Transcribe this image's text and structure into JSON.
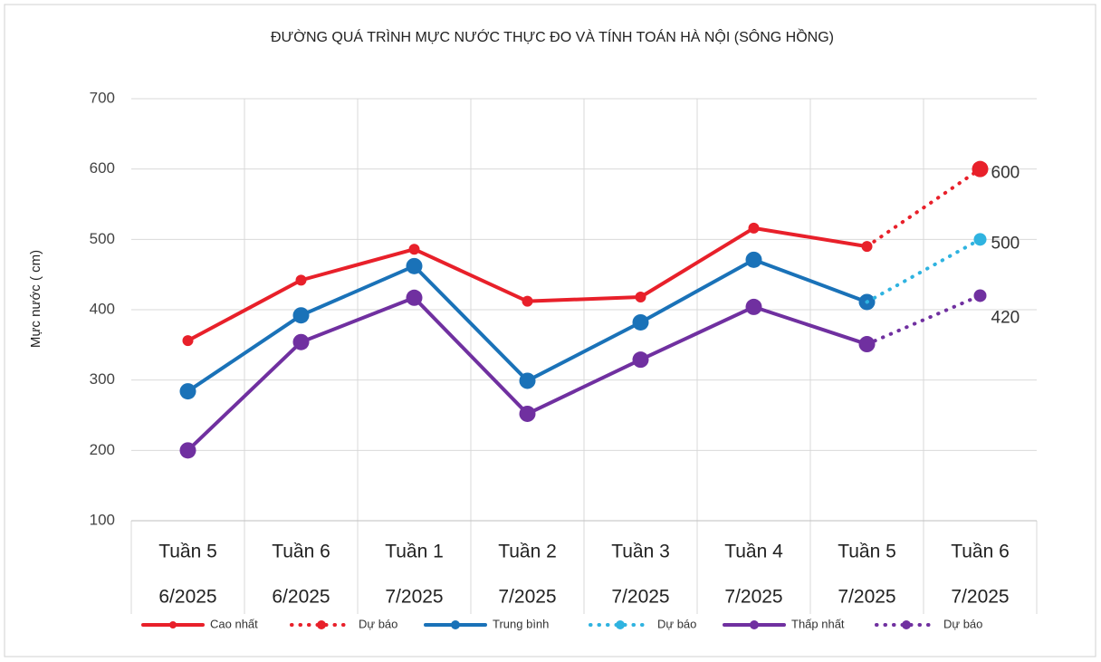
{
  "chart_data": {
    "type": "line",
    "title": "ĐƯỜNG QUÁ TRÌNH MỰC NƯỚC THỰC ĐO VÀ TÍNH TOÁN HÀ NỘI (SÔNG HỒNG)",
    "y_label": "Mực nước ( cm)",
    "categories": [
      [
        "Tuần 5",
        "6/2025"
      ],
      [
        "Tuần 6",
        "6/2025"
      ],
      [
        "Tuần 1",
        "7/2025"
      ],
      [
        "Tuần 2",
        "7/2025"
      ],
      [
        "Tuần 3",
        "7/2025"
      ],
      [
        "Tuần 4",
        "7/2025"
      ],
      [
        "Tuần 5",
        "7/2025"
      ],
      [
        "Tuần 6",
        "7/2025"
      ]
    ],
    "ylim": [
      100,
      700
    ],
    "yticks": [
      100,
      200,
      300,
      400,
      500,
      600,
      700
    ],
    "grid": true,
    "legend": "bottom",
    "series": [
      {
        "name": "Cao nhất",
        "color": "#e8202a",
        "style": "solid",
        "values": [
          356,
          442,
          486,
          412,
          418,
          516,
          490,
          null
        ]
      },
      {
        "name": "Dự báo",
        "color": "#e8202a",
        "style": "dotted",
        "data_labels": true,
        "values": [
          null,
          null,
          null,
          null,
          null,
          null,
          490,
          600
        ]
      },
      {
        "name": "Trung bình",
        "color": "#1a72b8",
        "style": "solid",
        "values": [
          284,
          392,
          462,
          299,
          382,
          471,
          411,
          null
        ]
      },
      {
        "name": "Dự báo",
        "color": "#2fb3e0",
        "style": "dotted",
        "data_labels": true,
        "values": [
          null,
          null,
          null,
          null,
          null,
          null,
          411,
          500
        ]
      },
      {
        "name": "Thấp nhất",
        "color": "#7030a0",
        "style": "solid",
        "values": [
          200,
          354,
          417,
          252,
          329,
          404,
          351,
          null
        ]
      },
      {
        "name": "Dự báo",
        "color": "#7030a0",
        "style": "dotted",
        "data_labels": true,
        "values": [
          null,
          null,
          null,
          null,
          null,
          null,
          351,
          420
        ]
      }
    ]
  }
}
